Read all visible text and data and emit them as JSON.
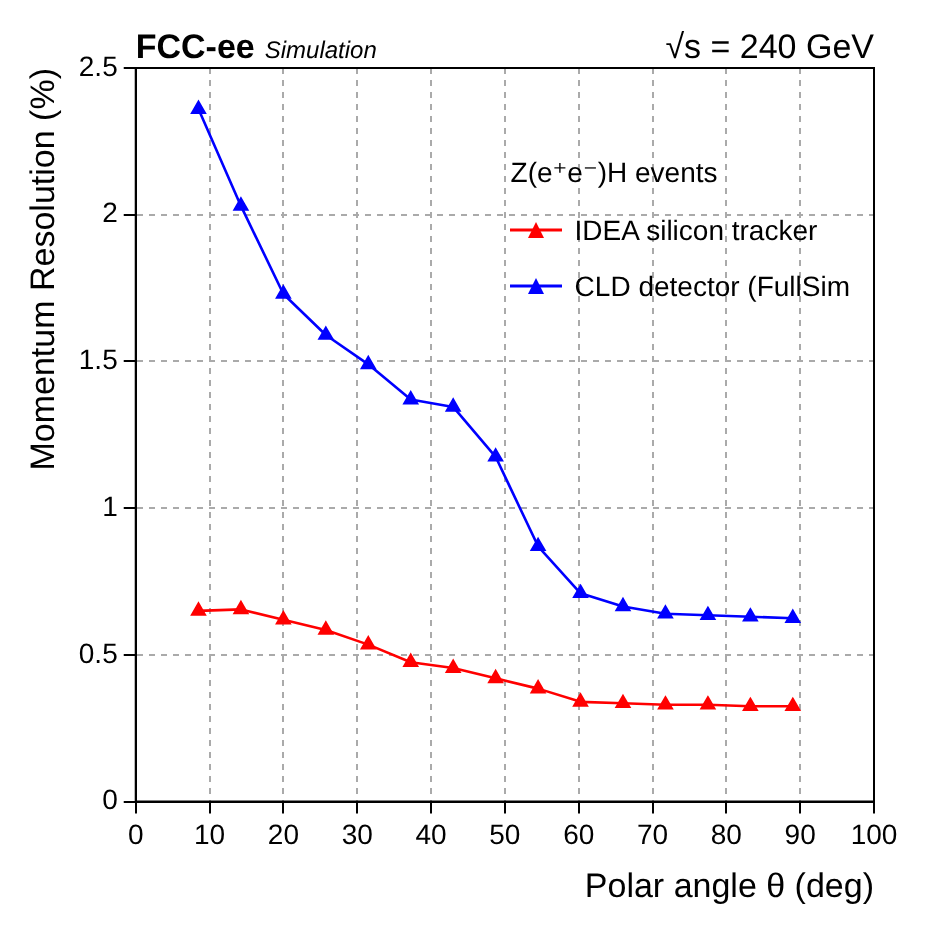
{
  "chart_data": {
    "type": "line",
    "title": "FCC-ee",
    "subtitle": "Simulation",
    "annotations": [
      "√s = 240 GeV"
    ],
    "legend_title": "Z(e⁺e⁻)H events",
    "xlabel": "Polar angle θ (deg)",
    "ylabel": "Momentum Resolution (%)",
    "x": [
      8.5,
      14.25,
      20,
      25.75,
      31.5,
      37.25,
      43,
      48.75,
      54.5,
      60.25,
      66,
      71.75,
      77.5,
      83.25,
      89
    ],
    "series": [
      {
        "name": "IDEA silicon tracker",
        "color": "#ff0000",
        "values": [
          0.65,
          0.655,
          0.62,
          0.585,
          0.535,
          0.475,
          0.455,
          0.42,
          0.385,
          0.34,
          0.335,
          0.33,
          0.33,
          0.325,
          0.325
        ]
      },
      {
        "name": "CLD detector (FullSim",
        "color": "#0000ff",
        "values": [
          2.36,
          2.03,
          1.73,
          1.59,
          1.49,
          1.37,
          1.345,
          1.175,
          0.87,
          0.71,
          0.665,
          0.64,
          0.635,
          0.63,
          0.625
        ]
      }
    ],
    "xlim": [
      0,
      100
    ],
    "xticks": [
      0,
      10,
      20,
      30,
      40,
      50,
      60,
      70,
      80,
      90,
      100
    ],
    "ylim": [
      0,
      2.5
    ],
    "yticks": [
      0,
      0.5,
      1,
      1.5,
      2,
      2.5
    ],
    "grid": true,
    "legend": "top right",
    "marker": "triangle",
    "line_style": "solid"
  }
}
